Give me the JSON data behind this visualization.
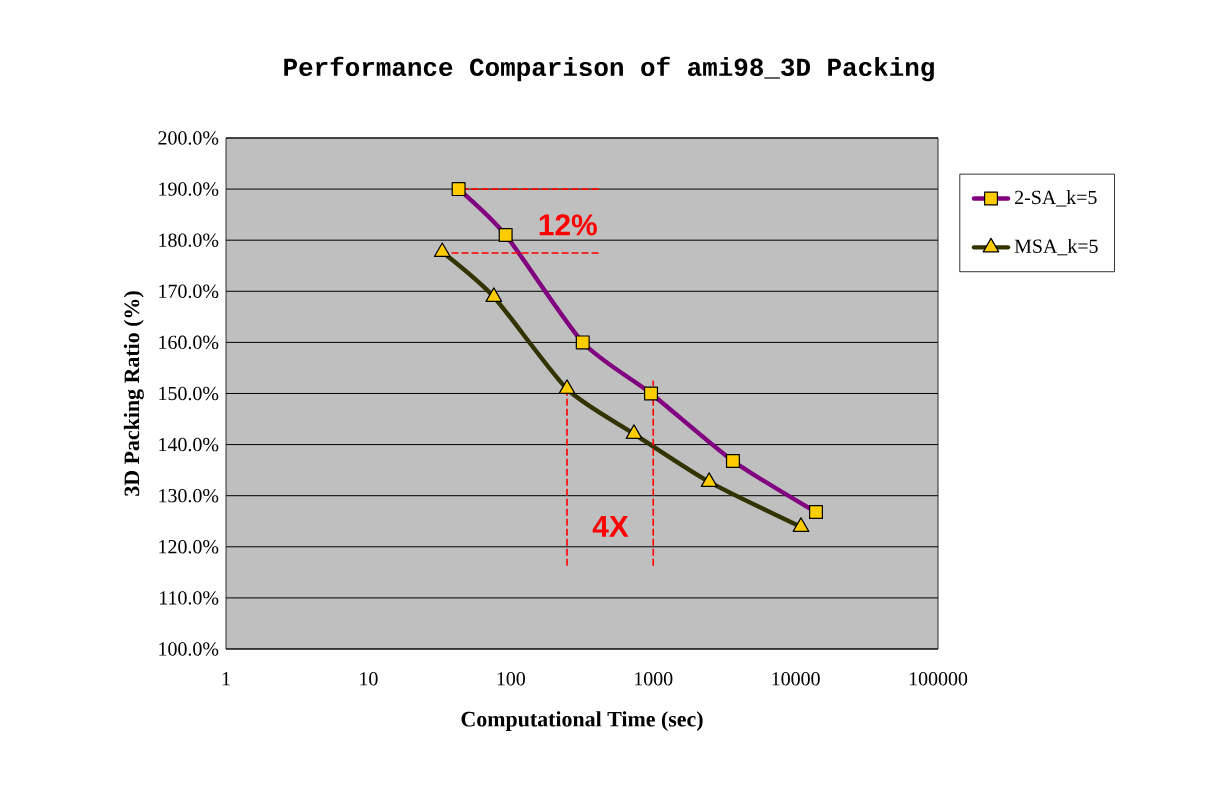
{
  "chart_data": {
    "type": "line",
    "title": "Performance Comparison of ami98_3D Packing",
    "xlabel": "Computational Time (sec)",
    "ylabel": "3D Packing Ratio (%)",
    "log": "x",
    "xlim": [
      1,
      100000
    ],
    "xticks": [
      1,
      10,
      100,
      1000,
      10000,
      100000
    ],
    "ylim": [
      100,
      200
    ],
    "yticks": [
      {
        "value": 100,
        "label": "100.0%"
      },
      {
        "value": 110,
        "label": "110.0%"
      },
      {
        "value": 120,
        "label": "120.0%"
      },
      {
        "value": 130,
        "label": "130.0%"
      },
      {
        "value": 140,
        "label": "140.0%"
      },
      {
        "value": 150,
        "label": "150.0%"
      },
      {
        "value": 160,
        "label": "160.0%"
      },
      {
        "value": 170,
        "label": "170.0%"
      },
      {
        "value": 180,
        "label": "180.0%"
      },
      {
        "value": 190,
        "label": "190.0%"
      },
      {
        "value": 200,
        "label": "200.0%"
      }
    ],
    "grid": "y",
    "legend": "top right",
    "series": [
      {
        "name": "2-SA_k=5",
        "color": "#800080",
        "marker": "square",
        "x": [
          43,
          92,
          320,
          965,
          3630,
          13900
        ],
        "values": [
          190,
          181,
          160,
          150,
          136.8,
          126.8
        ]
      },
      {
        "name": "MSA_k=5",
        "color": "#333300",
        "marker": "triangle",
        "x": [
          33,
          76,
          248,
          733,
          2470,
          10900
        ],
        "values": [
          177.7,
          168.9,
          150.9,
          142.1,
          132.7,
          123.9
        ]
      },
      {
        "color": "#ff0000",
        "marker": "none",
        "line_style": "dashed",
        "x": [
          43,
          410
        ],
        "values": [
          190,
          190
        ]
      },
      {
        "color": "#ff0000",
        "marker": "none",
        "line_style": "dashed",
        "x": [
          36,
          410
        ],
        "values": [
          177.5,
          177.5
        ]
      },
      {
        "color": "#ff0000",
        "marker": "none",
        "line_style": "dashed",
        "x": [
          248,
          248
        ],
        "values": [
          116.4,
          150.9
        ]
      },
      {
        "color": "#ff0000",
        "marker": "none",
        "line_style": "dashed",
        "x": [
          1000,
          1000
        ],
        "values": [
          116.4,
          152.4
        ]
      }
    ],
    "annotations": [
      "12%",
      "4X"
    ]
  }
}
